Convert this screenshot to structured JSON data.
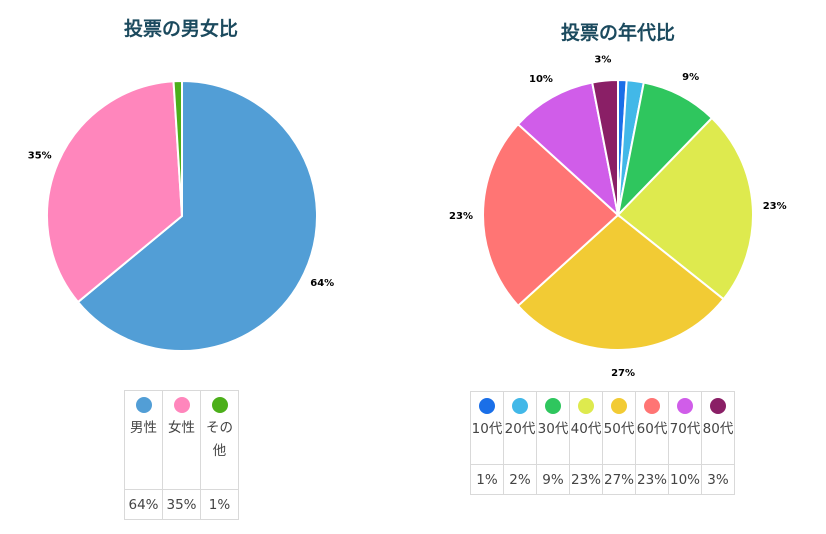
{
  "chart_data": [
    {
      "type": "pie",
      "title": "投票の男女比",
      "categories": [
        "男性",
        "女性",
        "その他"
      ],
      "values": [
        64,
        35,
        1
      ],
      "value_labels": [
        "64%",
        "35%",
        ""
      ],
      "colors": [
        "#529ed6",
        "#ff86bc",
        "#4caf1a"
      ],
      "legend": {
        "placement": "bottom",
        "names": [
          "男性",
          "女性",
          "その他"
        ],
        "values": [
          "64%",
          "35%",
          "1%"
        ]
      }
    },
    {
      "type": "pie",
      "title": "投票の年代比",
      "categories": [
        "10代",
        "20代",
        "30代",
        "40代",
        "50代",
        "60代",
        "70代",
        "80代"
      ],
      "values": [
        1,
        2,
        9,
        23,
        27,
        23,
        10,
        3
      ],
      "value_labels": [
        "",
        "",
        "9%",
        "23%",
        "27%",
        "23%",
        "10%",
        "3%"
      ],
      "colors": [
        "#1a6fe8",
        "#42b8e8",
        "#2fc65e",
        "#deea4e",
        "#f2cb34",
        "#ff7574",
        "#d05de9",
        "#8a1f66"
      ],
      "legend": {
        "placement": "bottom",
        "names": [
          "10代",
          "20代",
          "30代",
          "40代",
          "50代",
          "60代",
          "70代",
          "80代"
        ],
        "values": [
          "1%",
          "2%",
          "9%",
          "23%",
          "27%",
          "23%",
          "10%",
          "3%"
        ]
      }
    }
  ]
}
